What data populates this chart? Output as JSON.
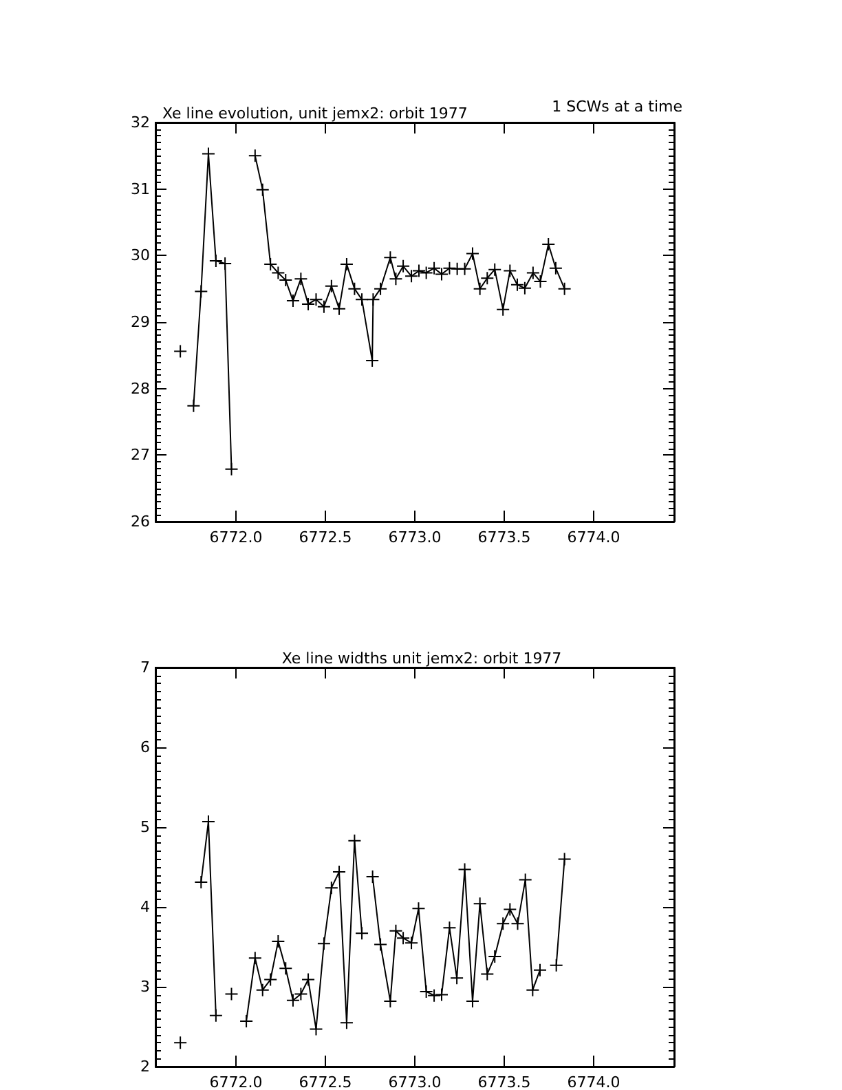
{
  "chart_data": [
    {
      "type": "line",
      "title": "Xe line evolution, unit jemx2: orbit 1977",
      "annotations": [
        "1 SCWs at a time"
      ],
      "marker": "cross",
      "line_style": "solid",
      "grid": false,
      "xlim": [
        6771.55,
        6774.45
      ],
      "xticks": [
        {
          "value": 6772,
          "label": "6772.0"
        },
        {
          "value": 6772.5,
          "label": "6772.5"
        },
        {
          "value": 6773,
          "label": "6773.0"
        },
        {
          "value": 6773.5,
          "label": "6773.5"
        },
        {
          "value": 6774,
          "label": "6774.0"
        }
      ],
      "ylim": [
        26,
        32
      ],
      "yticks": [
        26,
        27,
        28,
        29,
        30,
        31,
        32
      ],
      "series": [
        {
          "color": "#000000",
          "x": [
            6771.689,
            6771.726,
            6771.763,
            6771.805,
            6771.846,
            6771.888,
            6771.939,
            6771.975,
            6772.04,
            6772.107,
            6772.149,
            6772.193,
            6772.236,
            6772.278,
            6772.319,
            6772.363,
            6772.404,
            6772.448,
            6772.492,
            6772.534,
            6772.577,
            6772.619,
            6772.663,
            6772.704,
            6772.762,
            6772.767,
            6772.808,
            6772.863,
            6772.894,
            6772.935,
            6772.981,
            6773.023,
            6773.064,
            6773.108,
            6773.15,
            6773.194,
            6773.237,
            6773.279,
            6773.323,
            6773.364,
            6773.405,
            6773.447,
            6773.493,
            6773.532,
            6773.573,
            6773.615,
            6773.661,
            6773.702,
            6773.747,
            6773.788,
            6773.837
          ],
          "values": [
            28.56,
            null,
            27.74,
            29.46,
            31.53,
            29.92,
            29.88,
            26.79,
            null,
            31.5,
            30.99,
            29.87,
            29.74,
            29.63,
            29.32,
            29.65,
            29.27,
            29.34,
            29.23,
            29.54,
            29.2,
            29.87,
            29.5,
            29.34,
            28.42,
            29.34,
            29.5,
            29.97,
            29.65,
            29.84,
            29.69,
            29.77,
            29.74,
            29.81,
            29.72,
            29.81,
            29.8,
            29.8,
            30.03,
            29.5,
            29.66,
            29.79,
            29.19,
            29.77,
            29.56,
            29.51,
            29.74,
            29.61,
            30.17,
            29.81,
            29.5
          ]
        }
      ]
    },
    {
      "type": "line",
      "title": "Xe line widths unit jemx2: orbit 1977",
      "marker": "cross",
      "line_style": "solid",
      "grid": false,
      "xlim": [
        6771.55,
        6774.45
      ],
      "xticks": [
        {
          "value": 6772,
          "label": "6772.0"
        },
        {
          "value": 6772.5,
          "label": "6772.5"
        },
        {
          "value": 6773,
          "label": "6773.0"
        },
        {
          "value": 6773.5,
          "label": "6773.5"
        },
        {
          "value": 6774,
          "label": "6774.0"
        }
      ],
      "ylim": [
        2,
        7
      ],
      "yticks": [
        2,
        3,
        4,
        5,
        6,
        7
      ],
      "series": [
        {
          "color": "#000000",
          "x": [
            6771.689,
            6771.75,
            6771.805,
            6771.846,
            6771.888,
            6771.93,
            6771.975,
            6772.02,
            6772.058,
            6772.107,
            6772.149,
            6772.193,
            6772.236,
            6772.278,
            6772.319,
            6772.363,
            6772.404,
            6772.448,
            6772.492,
            6772.534,
            6772.577,
            6772.619,
            6772.663,
            6772.704,
            6772.734,
            6772.764,
            6772.808,
            6772.863,
            6772.894,
            6772.935,
            6772.981,
            6773.021,
            6773.064,
            6773.108,
            6773.15,
            6773.194,
            6773.235,
            6773.279,
            6773.323,
            6773.364,
            6773.405,
            6773.447,
            6773.493,
            6773.532,
            6773.575,
            6773.618,
            6773.659,
            6773.7,
            6773.745,
            6773.791,
            6773.837
          ],
          "values": [
            2.3,
            null,
            4.31,
            5.07,
            2.64,
            null,
            2.91,
            null,
            2.57,
            3.36,
            2.96,
            3.09,
            3.57,
            3.23,
            2.83,
            2.91,
            3.09,
            2.47,
            3.54,
            4.24,
            4.44,
            2.55,
            4.83,
            3.67,
            null,
            4.38,
            3.53,
            2.82,
            3.7,
            3.61,
            3.55,
            3.98,
            2.94,
            2.89,
            2.9,
            3.74,
            3.11,
            4.47,
            2.82,
            4.04,
            3.16,
            3.38,
            3.79,
            3.97,
            3.79,
            4.34,
            2.96,
            3.21,
            null,
            3.27,
            4.6
          ]
        }
      ]
    }
  ]
}
